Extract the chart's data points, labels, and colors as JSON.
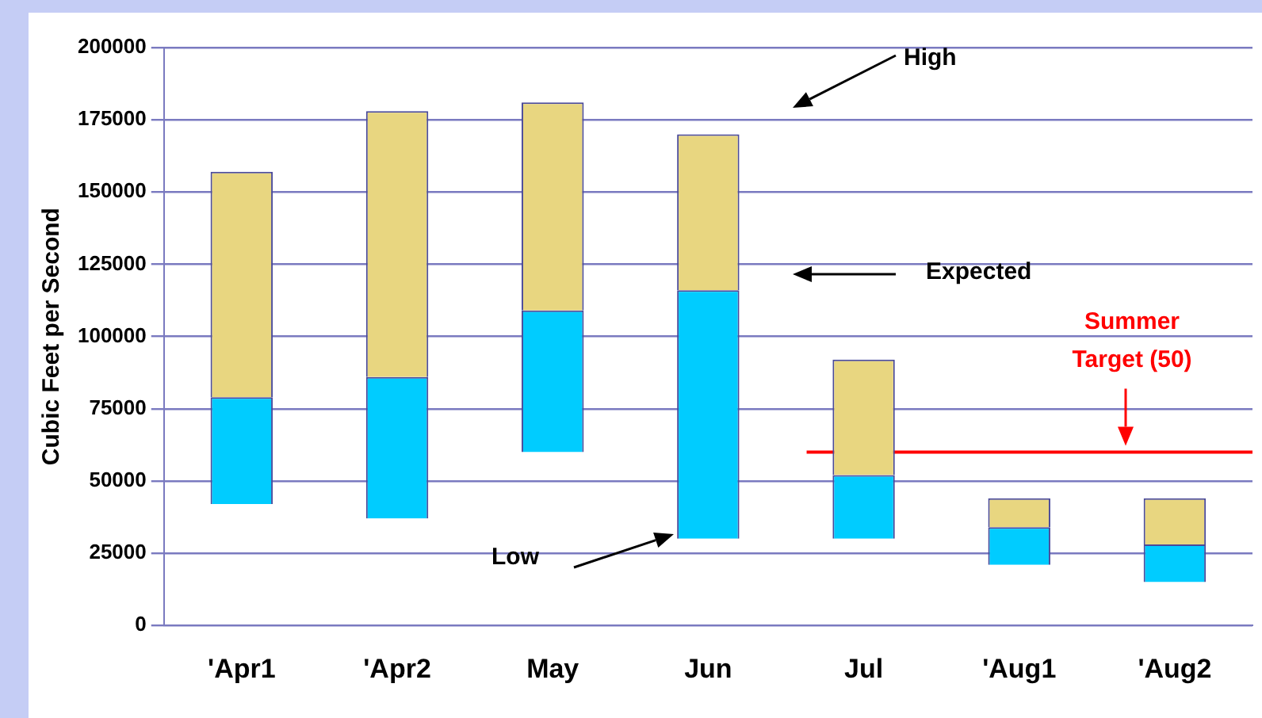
{
  "chart_data": {
    "type": "bar",
    "ylabel": "Cubic Feet per Second",
    "categories": [
      "'Apr1",
      "'Apr2",
      "May",
      "Jun",
      "Jul",
      "'Aug1",
      "'Aug2"
    ],
    "series": [
      {
        "color": "#00ccff",
        "base": [
          42000,
          37000,
          60000,
          30000,
          30000,
          21000,
          15000
        ],
        "values": [
          37000,
          49000,
          49000,
          86000,
          22000,
          13000,
          13000
        ]
      },
      {
        "color": "#e8d680",
        "base": [
          79000,
          86000,
          109000,
          116000,
          52000,
          34000,
          28000
        ],
        "values": [
          78000,
          92000,
          72000,
          54000,
          40000,
          10000,
          16000
        ]
      }
    ],
    "ylim": [
      0,
      200000
    ],
    "yticks": [
      0,
      25000,
      50000,
      75000,
      100000,
      125000,
      150000,
      175000,
      200000
    ],
    "grid": "y",
    "legend": false,
    "annotations": [
      "High",
      "Expected",
      "Low"
    ],
    "ref_lines": [
      {
        "axis": "y",
        "value": 60000,
        "label": "Summer Target (50)",
        "color": "#ff0000"
      }
    ]
  }
}
